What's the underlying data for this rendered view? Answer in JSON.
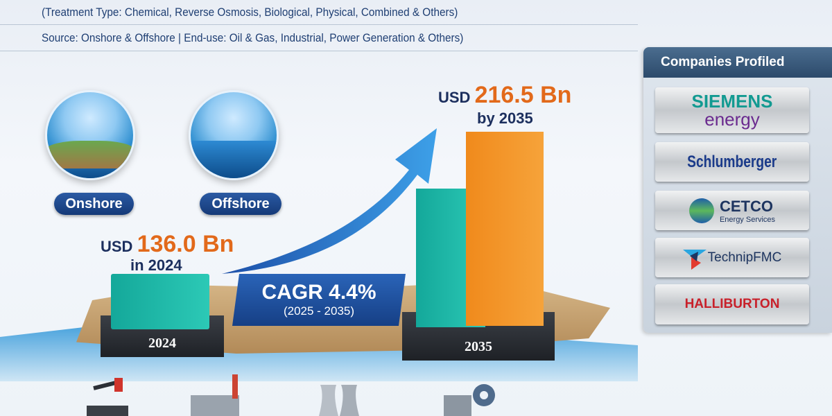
{
  "header": {
    "line1": "(Treatment Type: Chemical, Reverse Osmosis, Biological, Physical, Combined & Others)",
    "line2": "Source: Onshore & Offshore | End-use: Oil & Gas, Industrial, Power Generation & Others)"
  },
  "sources": [
    {
      "label": "Onshore"
    },
    {
      "label": "Offshore"
    }
  ],
  "market_2024": {
    "prefix": "USD",
    "value": "136.0 Bn",
    "caption": "in 2024",
    "year": "2024"
  },
  "market_2035": {
    "prefix": "USD",
    "value": "216.5 Bn",
    "caption": "by 2035",
    "year": "2035"
  },
  "cagr": {
    "label": "CAGR 4.4%",
    "period": "(2025 - 2035)"
  },
  "colors": {
    "teal": "#1fb8a8",
    "orange": "#f08a1c",
    "navy": "#1f3f73",
    "accent": "#e2691a"
  },
  "companies": {
    "title": "Companies Profiled",
    "items": [
      {
        "line1": "SIEMENS",
        "line2": "energy"
      },
      {
        "line1": "Schlumberger"
      },
      {
        "line1": "CETCO",
        "line2": "Energy Services"
      },
      {
        "line1": "TechnipFMC"
      },
      {
        "line1": "HALLIBURTON"
      }
    ]
  },
  "bottom_icons": [
    "oil-pump-icon",
    "factory-icon",
    "power-plant-icon",
    "industrial-gear-icon"
  ]
}
